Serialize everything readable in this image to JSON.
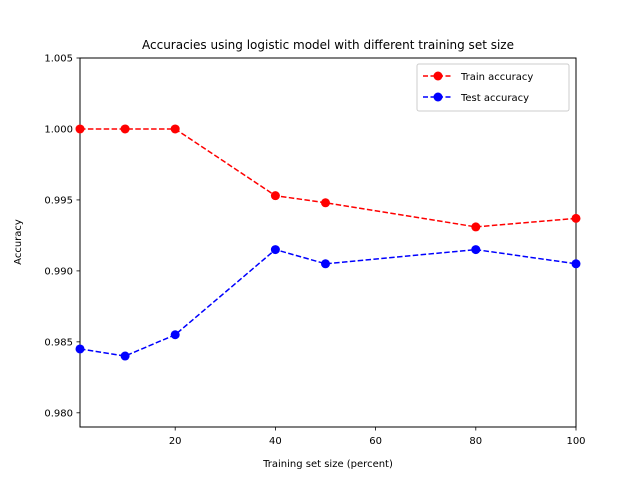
{
  "chart_data": {
    "type": "line",
    "title": "Accuracies using logistic model with different training set size",
    "xlabel": "Training set size (percent)",
    "ylabel": "Accuracy",
    "xlim": [
      1,
      100
    ],
    "ylim": [
      0.979,
      1.005
    ],
    "xticks": [
      20,
      40,
      60,
      80,
      100
    ],
    "yticks": [
      0.98,
      0.985,
      0.99,
      0.995,
      1.0,
      1.005
    ],
    "ytick_labels": [
      "0.980",
      "0.985",
      "0.990",
      "0.995",
      "1.000",
      "1.005"
    ],
    "x": [
      1,
      10,
      20,
      40,
      50,
      80,
      100
    ],
    "series": [
      {
        "name": "Train accuracy",
        "color": "#ff0000",
        "values": [
          1.0,
          1.0,
          1.0,
          0.9953,
          0.9948,
          0.9931,
          0.9937
        ]
      },
      {
        "name": "Test accuracy",
        "color": "#0000ff",
        "values": [
          0.9845,
          0.984,
          0.9855,
          0.9915,
          0.9905,
          0.9915,
          0.9905
        ]
      }
    ],
    "grid": false,
    "legend_position": "top-right"
  }
}
